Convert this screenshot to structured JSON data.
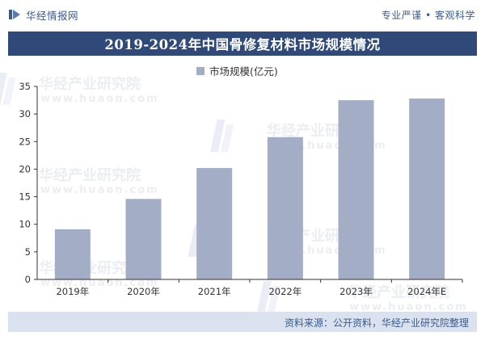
{
  "header": {
    "brand": "华经情报网",
    "tagline": "专业严谨 • 客观科学"
  },
  "title": "2019-2024年中国骨修复材料市场规模情况",
  "watermark": {
    "cn": "华经产业研究院",
    "url": "www.huaon.com"
  },
  "colors": {
    "bar": "#a4adc6",
    "title_bg": "#2f4a78",
    "brand": "#3b5a8c",
    "source_bg": "#d9e2ee"
  },
  "chart_data": {
    "type": "bar",
    "title": "2019-2024年中国骨修复材料市场规模情况",
    "categories": [
      "2019年",
      "2020年",
      "2021年",
      "2022年",
      "2023年",
      "2024年E"
    ],
    "series": [
      {
        "name": "市场规模(亿元)",
        "values": [
          9.1,
          14.6,
          20.2,
          25.8,
          32.5,
          32.8
        ]
      }
    ],
    "ylim": [
      0,
      35
    ],
    "yticks": [
      0,
      5,
      10,
      15,
      20,
      25,
      30,
      35
    ],
    "xlabel": "",
    "ylabel": "",
    "legend": "top-center",
    "grid": false
  },
  "source": "资料来源：公开资料，华经产业研究院整理"
}
